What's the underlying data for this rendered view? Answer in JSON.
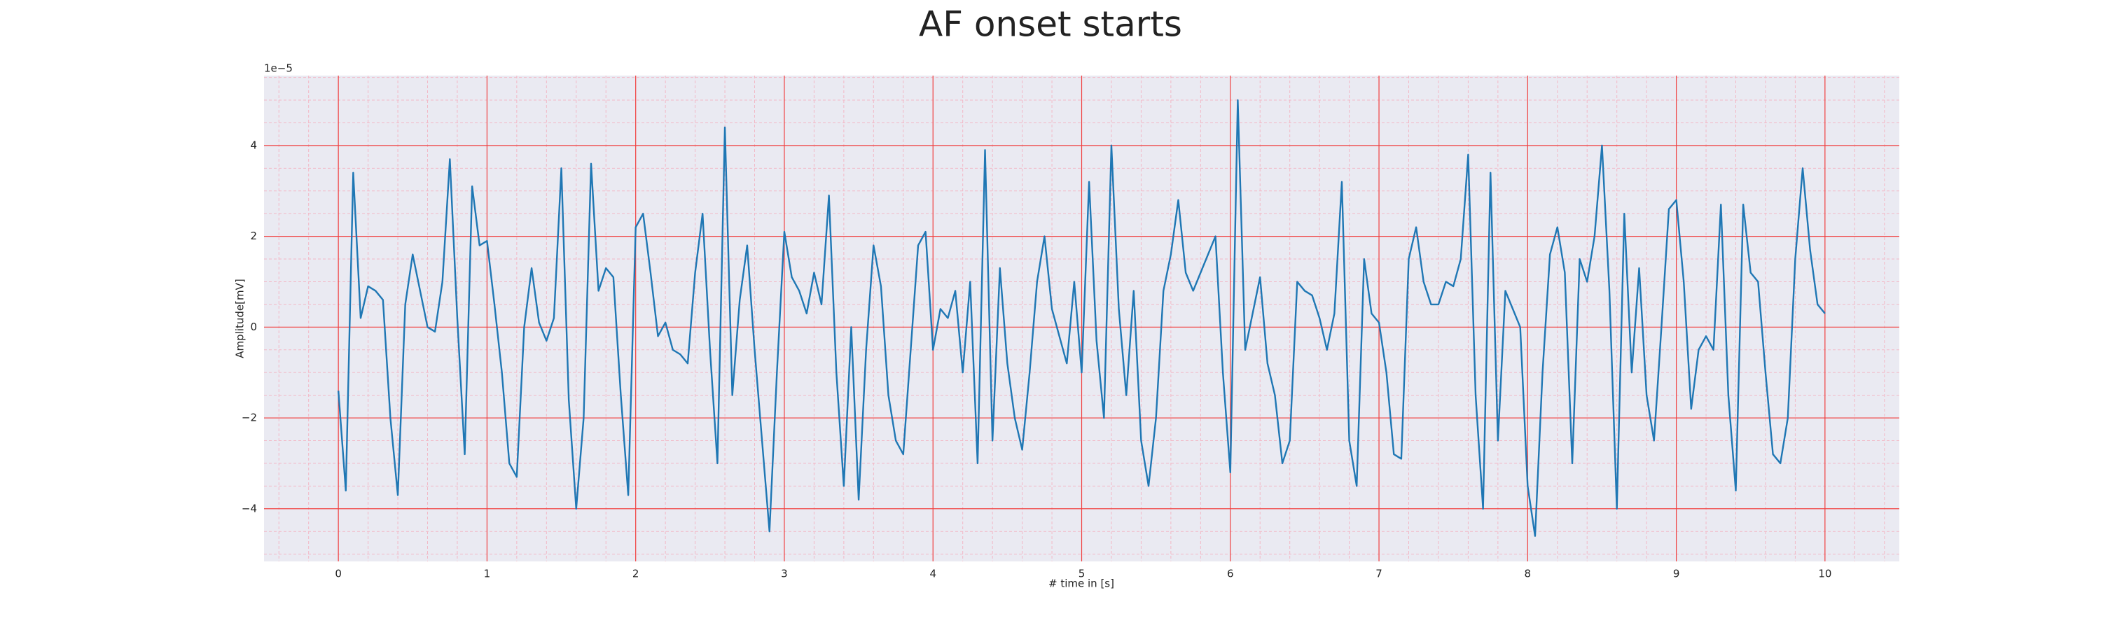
{
  "chart_data": {
    "type": "line",
    "title": "AF onset starts",
    "xlabel": "# time in [s]",
    "ylabel": "Amplitude[mV]",
    "y_offset_text": "1e−5",
    "xlim": [
      -0.5,
      10.5
    ],
    "ylim": [
      -5.16,
      5.54
    ],
    "xticks": [
      0,
      1,
      2,
      3,
      4,
      5,
      6,
      7,
      8,
      9,
      10
    ],
    "yticks": [
      {
        "value": -4,
        "label": "−4"
      },
      {
        "value": -2,
        "label": "−2"
      },
      0,
      2,
      4
    ],
    "xminorticks": [
      -0.4,
      -0.2,
      0.2,
      0.4,
      0.6,
      0.8,
      1.2,
      1.4,
      1.6,
      1.8,
      2.2,
      2.4,
      2.6,
      2.8,
      3.2,
      3.4,
      3.6,
      3.8,
      4.2,
      4.4,
      4.6,
      4.8,
      5.2,
      5.4,
      5.6,
      5.8,
      6.2,
      6.4,
      6.6,
      6.8,
      7.2,
      7.4,
      7.6,
      7.8,
      8.2,
      8.4,
      8.6,
      8.8,
      9.2,
      9.4,
      9.6,
      9.8,
      10.2,
      10.4
    ],
    "yminorticks": [
      -5,
      -4.5,
      -3.5,
      -3,
      -2.5,
      -1.5,
      -1,
      -0.5,
      0.5,
      1,
      1.5,
      2.5,
      3,
      3.5,
      4.5,
      5,
      5.5
    ],
    "grid": true,
    "grid_color": "#f04040",
    "minor_grid_color": "#f2b8c6",
    "background": "#eaeaf2",
    "x": [
      0,
      0.05,
      0.1,
      0.15,
      0.2,
      0.25,
      0.3,
      0.35,
      0.4,
      0.45,
      0.5,
      0.55,
      0.6,
      0.65,
      0.7,
      0.75,
      0.8,
      0.85,
      0.9,
      0.95,
      1,
      1.05,
      1.1,
      1.15,
      1.2,
      1.25,
      1.3,
      1.35,
      1.4,
      1.45,
      1.5,
      1.55,
      1.6,
      1.65,
      1.7,
      1.75,
      1.8,
      1.85,
      1.9,
      1.95,
      2,
      2.05,
      2.1,
      2.15,
      2.2,
      2.25,
      2.3,
      2.35,
      2.4,
      2.45,
      2.5,
      2.55,
      2.6,
      2.65,
      2.7,
      2.75,
      2.8,
      2.85,
      2.9,
      2.95,
      3,
      3.05,
      3.1,
      3.15,
      3.2,
      3.25,
      3.3,
      3.35,
      3.4,
      3.45,
      3.5,
      3.55,
      3.6,
      3.65,
      3.7,
      3.75,
      3.8,
      3.85,
      3.9,
      3.95,
      4,
      4.05,
      4.1,
      4.15,
      4.2,
      4.25,
      4.3,
      4.35,
      4.4,
      4.45,
      4.5,
      4.55,
      4.6,
      4.65,
      4.7,
      4.75,
      4.8,
      4.85,
      4.9,
      4.95,
      5,
      5.05,
      5.1,
      5.15,
      5.2,
      5.25,
      5.3,
      5.35,
      5.4,
      5.45,
      5.5,
      5.55,
      5.6,
      5.65,
      5.7,
      5.75,
      5.8,
      5.85,
      5.9,
      5.95,
      6,
      6.05,
      6.1,
      6.15,
      6.2,
      6.25,
      6.3,
      6.35,
      6.4,
      6.45,
      6.5,
      6.55,
      6.6,
      6.65,
      6.7,
      6.75,
      6.8,
      6.85,
      6.9,
      6.95,
      7,
      7.05,
      7.1,
      7.15,
      7.2,
      7.25,
      7.3,
      7.35,
      7.4,
      7.45,
      7.5,
      7.55,
      7.6,
      7.65,
      7.7,
      7.75,
      7.8,
      7.85,
      7.9,
      7.95,
      8,
      8.05,
      8.1,
      8.15,
      8.2,
      8.25,
      8.3,
      8.35,
      8.4,
      8.45,
      8.5,
      8.55,
      8.6,
      8.65,
      8.7,
      8.75,
      8.8,
      8.85,
      8.9,
      8.95,
      9,
      9.05,
      9.1,
      9.15,
      9.2,
      9.25,
      9.3,
      9.35,
      9.4,
      9.45,
      9.5,
      9.55,
      9.6,
      9.65,
      9.7,
      9.75,
      9.8,
      9.85,
      9.9,
      9.95,
      10
    ],
    "series": [
      {
        "color": "#1f77b4",
        "values": [
          -1.4,
          -3.6,
          3.4,
          0.2,
          0.9,
          0.8,
          0.6,
          -2.0,
          -3.7,
          0.5,
          1.6,
          0.8,
          0.0,
          -0.1,
          1.0,
          3.7,
          0.2,
          -2.8,
          3.1,
          1.8,
          1.9,
          0.5,
          -1.0,
          -3.0,
          -3.3,
          0.0,
          1.3,
          0.1,
          -0.3,
          0.2,
          3.5,
          -1.6,
          -4.0,
          -2.0,
          3.6,
          0.8,
          1.3,
          1.1,
          -1.5,
          -3.7,
          2.2,
          2.5,
          1.2,
          -0.2,
          0.1,
          -0.5,
          -0.6,
          -0.8,
          1.2,
          2.5,
          -0.5,
          -3.0,
          4.4,
          -1.5,
          0.6,
          1.8,
          -0.5,
          -2.5,
          -4.5,
          -1.0,
          2.1,
          1.1,
          0.8,
          0.3,
          1.2,
          0.5,
          2.9,
          -1.0,
          -3.5,
          0.0,
          -3.8,
          -0.5,
          1.8,
          0.9,
          -1.5,
          -2.5,
          -2.8,
          -0.5,
          1.8,
          2.1,
          -0.5,
          0.4,
          0.2,
          0.8,
          -1.0,
          1.0,
          -3.0,
          3.9,
          -2.5,
          1.3,
          -0.8,
          -2.0,
          -2.7,
          -1.0,
          1.0,
          2.0,
          0.4,
          -0.2,
          -0.8,
          1.0,
          -1.0,
          3.2,
          -0.3,
          -2.0,
          4.0,
          0.4,
          -1.5,
          0.8,
          -2.5,
          -3.5,
          -2.0,
          0.8,
          1.6,
          2.8,
          1.2,
          0.8,
          1.2,
          1.6,
          2.0,
          -1.0,
          -3.2,
          5.0,
          -0.5,
          0.3,
          1.1,
          -0.8,
          -1.5,
          -3.0,
          -2.5,
          1.0,
          0.8,
          0.7,
          0.2,
          -0.5,
          0.3,
          3.2,
          -2.5,
          -3.5,
          1.5,
          0.3,
          0.1,
          -1.0,
          -2.8,
          -2.9,
          1.5,
          2.2,
          1.0,
          0.5,
          0.5,
          1.0,
          0.9,
          1.5,
          3.8,
          -1.5,
          -4.0,
          3.4,
          -2.5,
          0.8,
          0.4,
          0.0,
          -3.5,
          -4.6,
          -1.0,
          1.6,
          2.2,
          1.2,
          -3.0,
          1.5,
          1.0,
          2.0,
          4.0,
          0.8,
          -4.0,
          2.5,
          -1.0,
          1.3,
          -1.5,
          -2.5,
          0.0,
          2.6,
          2.8,
          1.0,
          -1.8,
          -0.5,
          -0.2,
          -0.5,
          2.7,
          -1.5,
          -3.6,
          2.7,
          1.2,
          1.0,
          -1.0,
          -2.8,
          -3.0,
          -2.0,
          1.5,
          3.5,
          1.7,
          0.5,
          0.3
        ]
      }
    ]
  }
}
